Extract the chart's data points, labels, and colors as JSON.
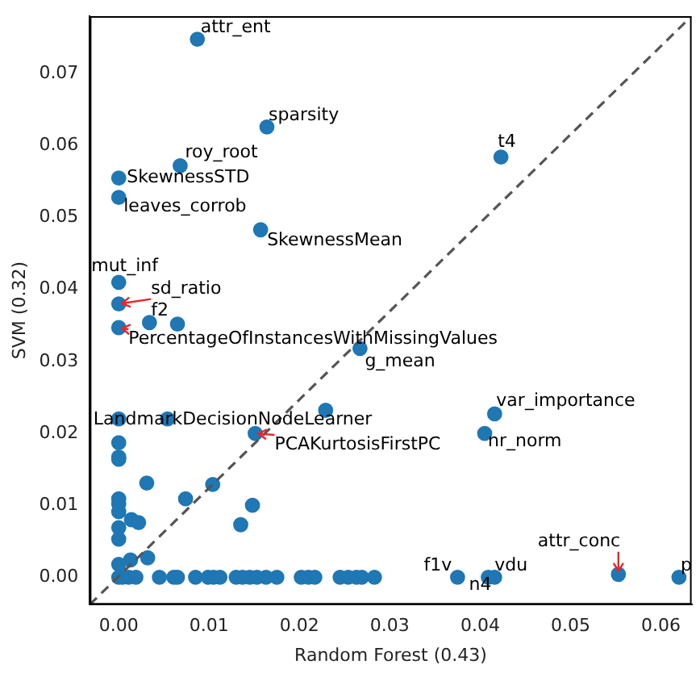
{
  "chart_data": {
    "type": "scatter",
    "xlabel": "Random Forest (0.43)",
    "ylabel": "SVM (0.32)",
    "xlim": [
      -0.0032,
      0.0634
    ],
    "ylim": [
      -0.0038,
      0.078
    ],
    "xticks": [
      {
        "value": 0,
        "label": "0.00"
      },
      {
        "value": 0.01,
        "label": "0.01"
      },
      {
        "value": 0.02,
        "label": "0.02"
      },
      {
        "value": 0.03,
        "label": "0.03"
      },
      {
        "value": 0.04,
        "label": "0.04"
      },
      {
        "value": 0.05,
        "label": "0.05"
      },
      {
        "value": 0.06,
        "label": "0.06"
      }
    ],
    "yticks": [
      {
        "value": 0,
        "label": "0.00"
      },
      {
        "value": 0.01,
        "label": "0.01"
      },
      {
        "value": 0.02,
        "label": "0.02"
      },
      {
        "value": 0.03,
        "label": "0.03"
      },
      {
        "value": 0.04,
        "label": "0.04"
      },
      {
        "value": 0.05,
        "label": "0.05"
      },
      {
        "value": 0.06,
        "label": "0.06"
      },
      {
        "value": 0.07,
        "label": "0.07"
      }
    ],
    "grid": false,
    "legend": false,
    "series": [
      {
        "type": "scatter",
        "color": "#1f77b4",
        "marker": "circle",
        "x": [
          0.0087,
          0.0164,
          0.0068,
          0,
          0,
          0.0157,
          0,
          0,
          0,
          0.0034,
          0.0065,
          0.0267,
          0.0229,
          0.0151,
          0.0054,
          0,
          0,
          0,
          0,
          0.0031,
          0.0104,
          0.0074,
          0.0148,
          0.0135,
          0,
          0,
          0,
          0,
          0,
          0.0014,
          0.0022,
          0.0013,
          0.0032,
          0,
          0.0416,
          0.0405,
          0.0375,
          0.0409,
          0.0416,
          0.0553,
          0.062,
          0.0423,
          0,
          0.0004,
          0.0011,
          0.0019,
          0.0045,
          0.0061,
          0.0065,
          0.0085,
          0.0099,
          0.0105,
          0.0112,
          0.013,
          0.0137,
          0.0145,
          0.0153,
          0.0163,
          0.0175,
          0.0202,
          0.021,
          0.0217,
          0.0245,
          0.0254,
          0.0263,
          0.0269,
          0.0283
        ],
        "values": [
          0.0748,
          0.0626,
          0.0572,
          0.0555,
          0.0528,
          0.0483,
          0.041,
          0.038,
          0.0347,
          0.0354,
          0.0352,
          0.0318,
          0.0232,
          0.02,
          0.022,
          0.022,
          0.0187,
          0.0167,
          0.0164,
          0.0131,
          0.0129,
          0.0109,
          0.01,
          0.0073,
          0.0109,
          0.0102,
          0.0091,
          0.0069,
          0.0053,
          0.008,
          0.0076,
          0.0024,
          0.0027,
          0.0018,
          0.0227,
          0.02,
          0,
          0,
          0,
          0.0004,
          0,
          0.0584,
          0,
          0,
          0,
          0,
          0,
          0,
          0,
          0,
          0,
          0,
          0,
          0,
          0,
          0,
          0,
          0,
          0,
          0,
          0,
          0,
          0,
          0,
          0,
          0,
          0
        ]
      },
      {
        "type": "line",
        "color": "#555555",
        "marker": "none",
        "line_style": "dashed",
        "x": [
          -0.0032,
          0.0634
        ],
        "values": [
          -0.0038,
          0.078
        ]
      }
    ],
    "annotations": [
      {
        "text": "attr_ent",
        "x": 0.0087,
        "y": 0.0748
      },
      {
        "text": "sparsity",
        "x": 0.0164,
        "y": 0.0626
      },
      {
        "text": "roy_root",
        "x": 0.0068,
        "y": 0.0572
      },
      {
        "text": "SkewnessSTD",
        "x": 0,
        "y": 0.0555
      },
      {
        "text": "leaves_corrob",
        "x": 0,
        "y": 0.0528
      },
      {
        "text": "SkewnessMean",
        "x": 0.0157,
        "y": 0.0483
      },
      {
        "text": "mut_inf",
        "x": 0,
        "y": 0.041
      },
      {
        "text": "sd_ratio",
        "x": 0,
        "y": 0.038
      },
      {
        "text": "f2",
        "x": 0.0034,
        "y": 0.0354
      },
      {
        "text": "PercentageOfInstancesWithMissingValues",
        "x": 0,
        "y": 0.0347
      },
      {
        "text": "g_mean",
        "x": 0.0267,
        "y": 0.0318
      },
      {
        "text": "LandmarkDecisionNodeLearner",
        "x": 0.0229,
        "y": 0.0232
      },
      {
        "text": "PCAKurtosisFirstPC",
        "x": 0.0151,
        "y": 0.02
      },
      {
        "text": "var_importance",
        "x": 0.0416,
        "y": 0.0227
      },
      {
        "text": "nr_norm",
        "x": 0.0405,
        "y": 0.02
      },
      {
        "text": "f1v",
        "x": 0.0375,
        "y": 0
      },
      {
        "text": "n4",
        "x": 0.0409,
        "y": 0
      },
      {
        "text": "vdu",
        "x": 0.0416,
        "y": 0
      },
      {
        "text": "attr_conc",
        "x": 0.0553,
        "y": 0.0004
      },
      {
        "text": "p",
        "x": 0.062,
        "y": 0
      },
      {
        "text": "t4",
        "x": 0.0423,
        "y": 0.0584
      }
    ]
  }
}
